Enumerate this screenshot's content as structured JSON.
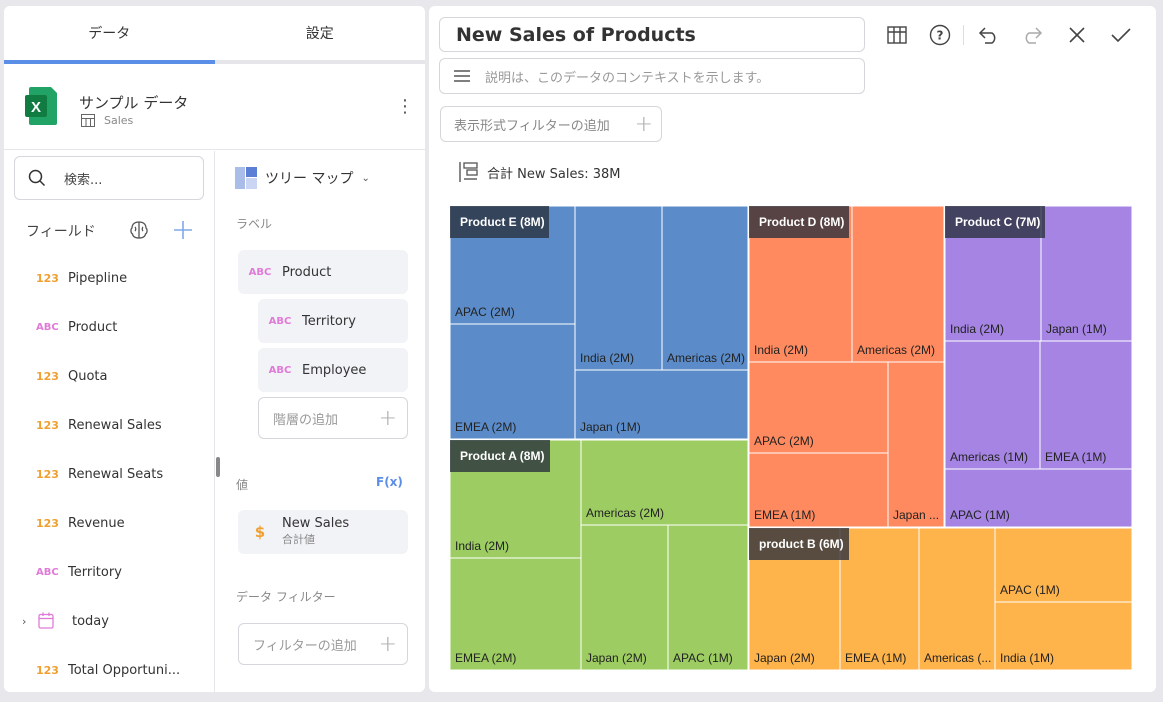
{
  "tabs": {
    "data": "データ",
    "settings": "設定"
  },
  "datasource": {
    "name": "サンプル データ",
    "sheet": "Sales"
  },
  "fields": {
    "search_placeholder": "検索...",
    "heading": "フィールド",
    "items": [
      {
        "type": "123",
        "name": "Pipepline"
      },
      {
        "type": "ABC",
        "name": "Product"
      },
      {
        "type": "123",
        "name": "Quota"
      },
      {
        "type": "123",
        "name": "Renewal Sales"
      },
      {
        "type": "123",
        "name": "Renewal Seats"
      },
      {
        "type": "123",
        "name": "Revenue"
      },
      {
        "type": "ABC",
        "name": "Territory"
      },
      {
        "type": "date",
        "name": "today"
      },
      {
        "type": "123",
        "name": "Total Opportuni..."
      }
    ]
  },
  "config": {
    "viz_type": "ツリー マップ",
    "labels_heading": "ラベル",
    "label_fields": [
      {
        "type": "ABC",
        "name": "Product"
      },
      {
        "type": "ABC",
        "name": "Territory"
      },
      {
        "type": "ABC",
        "name": "Employee"
      }
    ],
    "add_hierarchy": "階層の追加",
    "values_heading": "値",
    "fx": "F(x)",
    "value_field": {
      "type": "$",
      "name": "New Sales",
      "agg": "合計値"
    },
    "data_filter_heading": "データ フィルター",
    "add_filter": "フィルターの追加"
  },
  "header": {
    "title": "New Sales of Products",
    "description_placeholder": "説明は、このデータのコンテキストを示します。",
    "visual_filter": "表示形式フィルターの追加",
    "total": "合計 New Sales: 38M"
  },
  "colors": {
    "product_e": "#5b8cc9",
    "product_d": "#ff8a5f",
    "product_c": "#a584e3",
    "product_a": "#9ccc62",
    "product_b": "#ffb34b",
    "header_label_bg": "#3f4a5a",
    "accent": "#5b8ee6"
  },
  "chart_data": {
    "type": "treemap",
    "total": "38M",
    "groups": [
      {
        "name": "Product E (8M)",
        "children": [
          "APAC (2M)",
          "EMEA (2M)",
          "India (2M)",
          "Americas (2M)",
          "Japan (1M)"
        ]
      },
      {
        "name": "Product D (8M)",
        "children": [
          "India (2M)",
          "Americas (2M)",
          "APAC (2M)",
          "EMEA (1M)",
          "Japan ..."
        ]
      },
      {
        "name": "Product C (7M)",
        "children": [
          "India (2M)",
          "Japan (1M)",
          "Americas (1M)",
          "EMEA (1M)",
          "APAC (1M)"
        ]
      },
      {
        "name": "Product A (8M)",
        "children": [
          "India (2M)",
          "Americas (2M)",
          "EMEA (2M)",
          "Japan (2M)",
          "APAC (1M)"
        ]
      },
      {
        "name": "product B (6M)",
        "children": [
          "APAC (1M)",
          "Japan (2M)",
          "EMEA (1M)",
          "Americas (...",
          "India (1M)"
        ]
      }
    ]
  }
}
